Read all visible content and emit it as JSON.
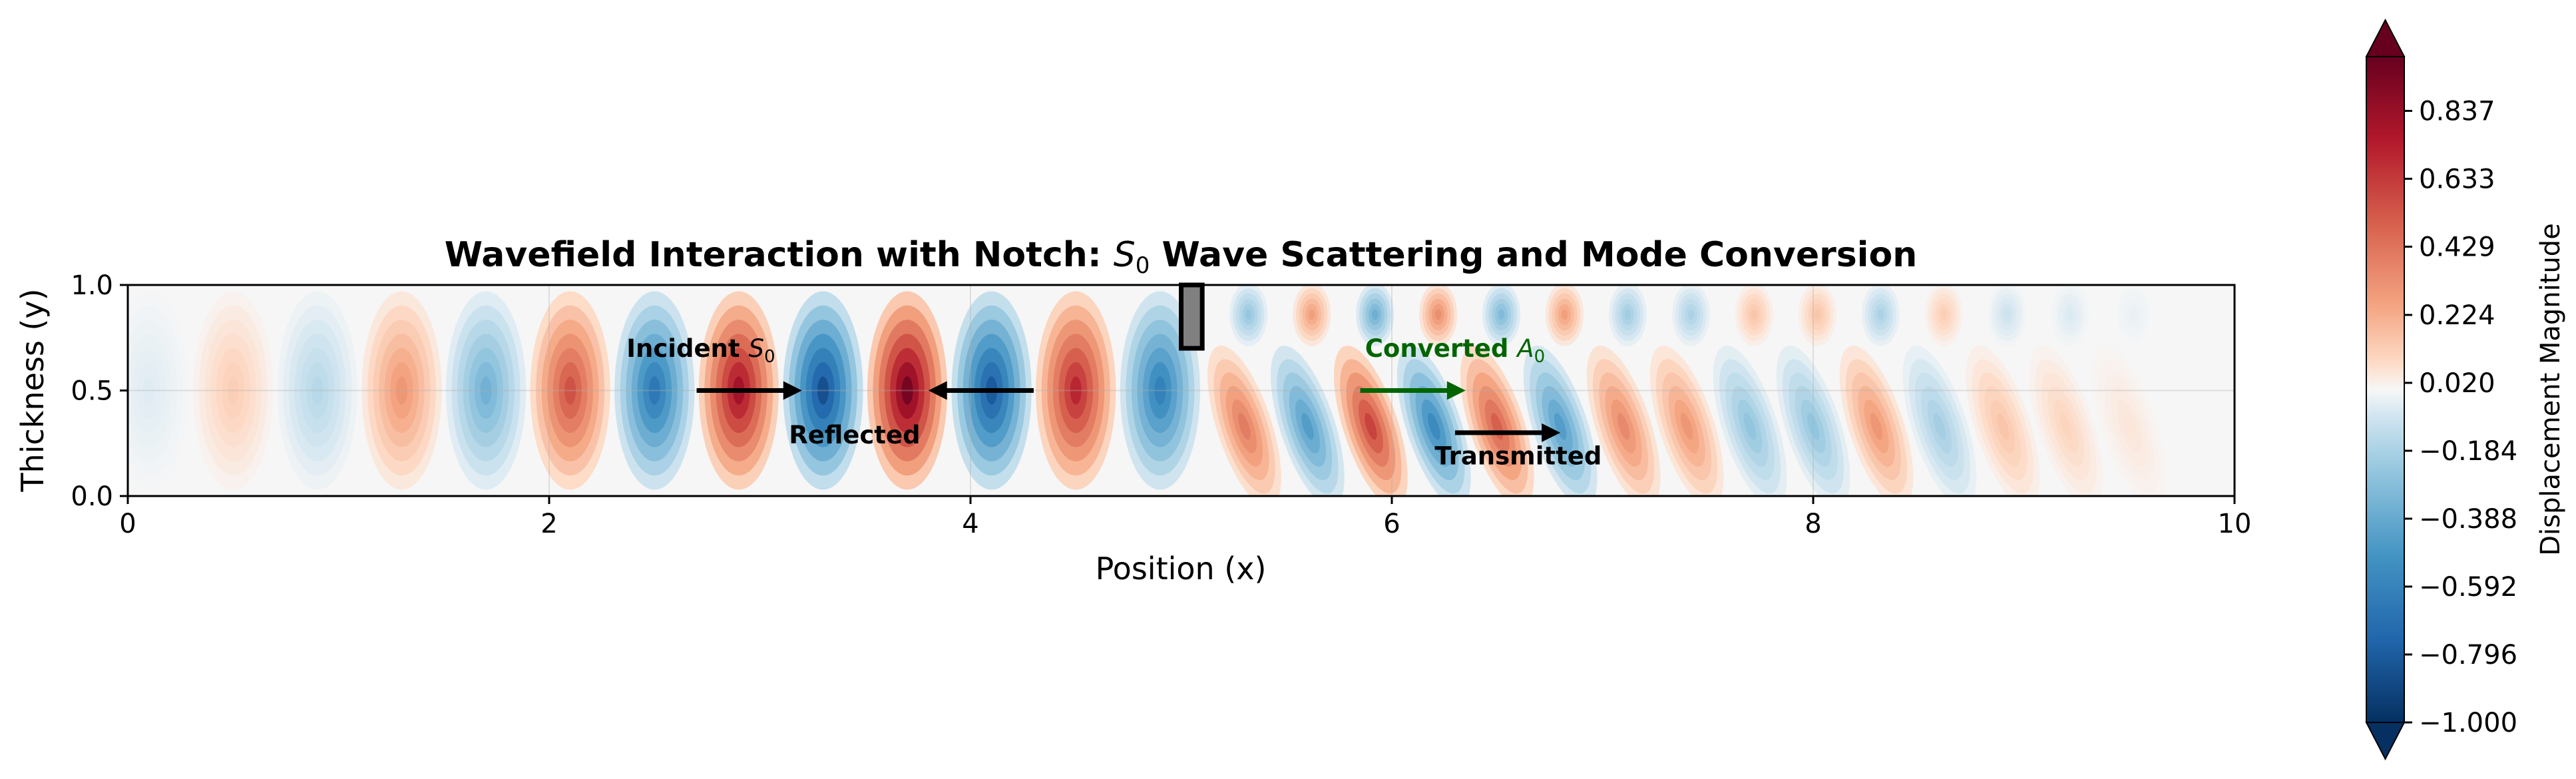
{
  "chart_data": {
    "type": "heatmap",
    "title_prefix": "Wavefield Interaction with Notch: ",
    "title_symbol": "S",
    "title_subscript": "0",
    "title_suffix": " Wave Scattering and Mode Conversion",
    "xlabel": "Position (x)",
    "ylabel": "Thickness (y)",
    "xlim": [
      0,
      10
    ],
    "ylim": [
      0,
      1
    ],
    "x_ticks": [
      "0",
      "2",
      "4",
      "6",
      "8",
      "10"
    ],
    "y_ticks": [
      "0.0",
      "0.5",
      "1.0"
    ],
    "grid": true,
    "colormap": "RdBu_r",
    "colorbar": {
      "label": "Displacement Magnitude",
      "range": [
        -1.0,
        1.0
      ],
      "ticks": [
        "−1.000",
        "−0.796",
        "−0.592",
        "−0.388",
        "−0.184",
        "0.020",
        "0.224",
        "0.429",
        "0.633",
        "0.837"
      ],
      "extend": "both"
    },
    "notch": {
      "x": [
        5.0,
        5.1
      ],
      "y": [
        0.7,
        1.0
      ],
      "color": "#808080"
    },
    "annotations": {
      "incident": {
        "text": "Incident ",
        "symbol": "S",
        "subscript": "0",
        "arrow_from": [
          2.7,
          0.5
        ],
        "arrow_to": [
          3.2,
          0.5
        ],
        "color": "#000000"
      },
      "reflected": {
        "text": "Reflected",
        "arrow_from": [
          4.3,
          0.5
        ],
        "arrow_to": [
          3.8,
          0.5
        ],
        "color": "#000000"
      },
      "converted": {
        "text": "Converted ",
        "symbol": "A",
        "subscript": "0",
        "arrow_from": [
          5.85,
          0.5
        ],
        "arrow_to": [
          6.35,
          0.5
        ],
        "color": "#006400"
      },
      "transmitted": {
        "text": "Transmitted",
        "arrow_from": [
          6.3,
          0.3
        ],
        "arrow_to": [
          6.8,
          0.3
        ],
        "color": "#000000"
      }
    },
    "field": {
      "left_region": {
        "x_range": [
          0,
          5
        ],
        "lobes_x": [
          0.1,
          0.5,
          0.9,
          1.3,
          1.7,
          2.1,
          2.5,
          2.9,
          3.3,
          3.7,
          4.1,
          4.5,
          4.9
        ],
        "lobes_value": [
          -0.05,
          0.12,
          -0.15,
          0.3,
          -0.35,
          0.55,
          -0.65,
          0.8,
          -0.85,
          0.95,
          -0.8,
          0.7,
          -0.6
        ]
      },
      "right_region": {
        "x_range": [
          5,
          10
        ],
        "lobes_x": [
          5.3,
          5.6,
          5.9,
          6.2,
          6.5,
          6.8,
          7.1,
          7.4,
          7.7,
          8.0,
          8.3,
          8.6,
          8.9,
          9.2,
          9.5
        ],
        "lobes_value": [
          0.4,
          -0.45,
          0.6,
          -0.55,
          0.5,
          -0.45,
          0.35,
          0.3,
          -0.25,
          -0.25,
          0.3,
          -0.2,
          0.15,
          0.1,
          0.05
        ]
      }
    }
  }
}
